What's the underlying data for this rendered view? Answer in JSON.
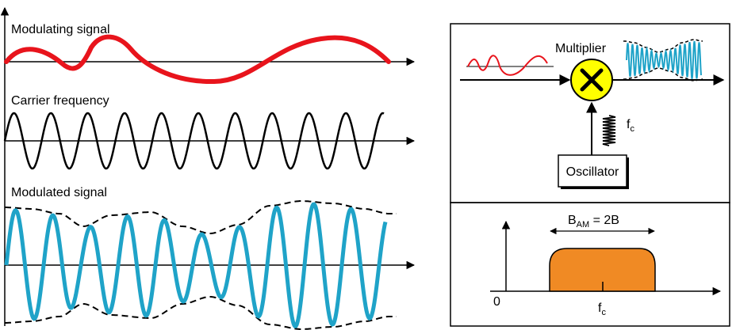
{
  "left_panel": {
    "modulating_label": "Modulating signal",
    "carrier_label": "Carrier frequency",
    "modulated_label": "Modulated signal"
  },
  "block_diagram": {
    "multiplier_label": "Multiplier",
    "multiplier_symbol": "✕",
    "oscillator_label": "Oscillator",
    "fc_main": "f",
    "fc_sub": "c"
  },
  "spectrum": {
    "bandwidth_main": "B",
    "bandwidth_sub": "AM",
    "bandwidth_eq": " = 2B",
    "origin_label": "0",
    "fc_main": "f",
    "fc_sub": "c"
  },
  "colors": {
    "modulating": "#e8141c",
    "carrier": "#000000",
    "modulated": "#1fa3c8",
    "multiplier_fill": "#ffff00",
    "band_fill": "#f08a24"
  }
}
